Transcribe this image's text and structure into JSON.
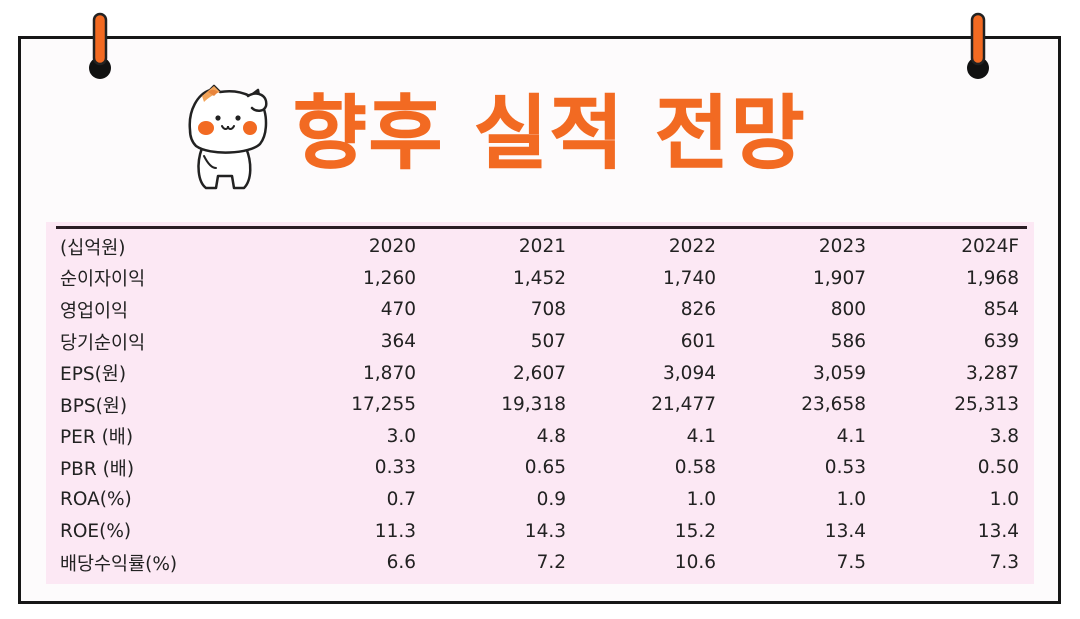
{
  "title": "향후 실적 전망",
  "colors": {
    "title": "#f26a22",
    "table_background": "#fce8f4",
    "border": "#161616",
    "pin": "#f26a22"
  },
  "icons": {
    "mascot": "cat-saluting-icon",
    "pins": "pushpin-icon"
  },
  "table": {
    "unit_label": "(십억원)",
    "columns": [
      "2020",
      "2021",
      "2022",
      "2023",
      "2024F"
    ],
    "rows": [
      {
        "label": "순이자이익",
        "values": [
          "1,260",
          "1,452",
          "1,740",
          "1,907",
          "1,968"
        ]
      },
      {
        "label": "영업이익",
        "values": [
          "470",
          "708",
          "826",
          "800",
          "854"
        ]
      },
      {
        "label": "당기순이익",
        "values": [
          "364",
          "507",
          "601",
          "586",
          "639"
        ]
      },
      {
        "label": "EPS(원)",
        "values": [
          "1,870",
          "2,607",
          "3,094",
          "3,059",
          "3,287"
        ]
      },
      {
        "label": "BPS(원)",
        "values": [
          "17,255",
          "19,318",
          "21,477",
          "23,658",
          "25,313"
        ]
      },
      {
        "label": "PER (배)",
        "values": [
          "3.0",
          "4.8",
          "4.1",
          "4.1",
          "3.8"
        ]
      },
      {
        "label": "PBR (배)",
        "values": [
          "0.33",
          "0.65",
          "0.58",
          "0.53",
          "0.50"
        ]
      },
      {
        "label": "ROA(%)",
        "values": [
          "0.7",
          "0.9",
          "1.0",
          "1.0",
          "1.0"
        ]
      },
      {
        "label": "ROE(%)",
        "values": [
          "11.3",
          "14.3",
          "15.2",
          "13.4",
          "13.4"
        ]
      },
      {
        "label": "배당수익률(%)",
        "values": [
          "6.6",
          "7.2",
          "10.6",
          "7.5",
          "7.3"
        ]
      }
    ]
  }
}
